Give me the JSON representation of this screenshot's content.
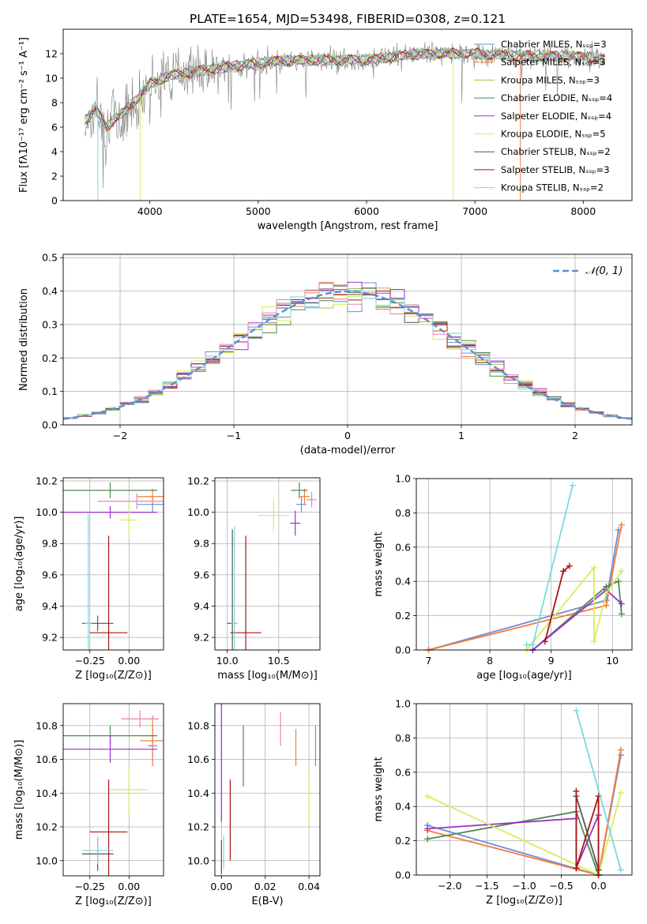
{
  "figure": {
    "title": "PLATE=1654, MJD=53498, FIBERID=0308, z=0.121"
  },
  "colors": {
    "chabrier_miles": "#6a8fd6",
    "salpeter_miles": "#f47c3c",
    "kroupa_miles": "#b9b94a",
    "chabrier_elodie": "#4f8a4f",
    "salpeter_elodie": "#9b30c8",
    "kroupa_elodie": "#d7ee5a",
    "chabrier_stelib": "#555555",
    "salpeter_stelib": "#a81414",
    "kroupa_stelib": "#7dd9dc",
    "data": "#808080",
    "pink": "#e882b8"
  },
  "chart_data": [
    {
      "id": "spectrum",
      "type": "line",
      "title": "PLATE=1654, MJD=53498, FIBERID=0308, z=0.121",
      "xlabel": "wavelength [Angstrom, rest frame]",
      "ylabel": "Flux [fλ10⁻¹⁷ erg cm⁻² s⁻¹ A⁻¹]",
      "xlim": [
        3200,
        8450
      ],
      "ylim": [
        0,
        14
      ],
      "xticks": [
        4000,
        5000,
        6000,
        7000,
        8000
      ],
      "yticks": [
        0,
        2,
        4,
        6,
        8,
        10,
        12
      ],
      "legend_position": "top-right",
      "legend": [
        "Chabrier MILES, N_SSP=3",
        "Salpeter MILES, N_SSP=3",
        "Kroupa MILES, N_SSP=3",
        "Chabrier ELODIE, N_SSP=4",
        "Salpeter ELODIE, N_SSP=4",
        "Kroupa ELODIE, N_SSP=5",
        "Chabrier STELIB, N_SSP=2",
        "Salpeter STELIB, N_SSP=3",
        "Kroupa STELIB, N_SSP=2"
      ],
      "continuum": {
        "x": [
          3400,
          3500,
          3600,
          3700,
          3800,
          3900,
          4000,
          4200,
          4400,
          4600,
          4800,
          5000,
          5200,
          5500,
          6000,
          6500,
          7000,
          7500,
          8000,
          8200
        ],
        "y": [
          6.5,
          7.5,
          6.0,
          6.8,
          7.5,
          8.5,
          9.5,
          10.3,
          10.5,
          10.8,
          11.0,
          11.2,
          11.4,
          11.5,
          11.5,
          12.0,
          12.0,
          11.8,
          11.8,
          11.5
        ]
      }
    },
    {
      "id": "residuals",
      "type": "line",
      "xlabel": "(data-model)/error",
      "ylabel": "Normed distribution",
      "xlim": [
        -2.5,
        2.5
      ],
      "ylim": [
        0,
        0.51
      ],
      "xticks": [
        -2,
        -1,
        0,
        1,
        2
      ],
      "yticks": [
        0.0,
        0.1,
        0.2,
        0.3,
        0.4,
        0.5
      ],
      "legend_position": "top-right",
      "legend": [
        "𝒩(0, 1)"
      ],
      "gaussian": {
        "mean": 0,
        "sigma": 1
      }
    },
    {
      "id": "age_vs_Z",
      "type": "scatter",
      "xlabel": "Z [log₁₀(Z/Z⊙)]",
      "ylabel": "age [log₁₀(age/yr)]",
      "xlim": [
        -0.42,
        0.22
      ],
      "ylim": [
        9.12,
        10.22
      ],
      "xticks": [
        -0.25,
        0.0
      ],
      "yticks": [
        9.2,
        9.4,
        9.6,
        9.8,
        10.0,
        10.2
      ],
      "points": [
        {
          "key": "chabrier_miles",
          "x": 0.15,
          "xerr": 0.1,
          "y": 10.05,
          "yerr": 0.05
        },
        {
          "key": "salpeter_miles",
          "x": 0.15,
          "xerr": 0.1,
          "y": 10.1,
          "yerr": 0.05
        },
        {
          "key": "pink",
          "x": 0.05,
          "xerr": 0.25,
          "y": 10.07,
          "yerr": 0.05
        },
        {
          "key": "chabrier_elodie",
          "x": -0.12,
          "xerr": 0.3,
          "y": 10.14,
          "yerr": 0.05
        },
        {
          "key": "salpeter_elodie",
          "x": -0.12,
          "xerr": 0.3,
          "y": 10.0,
          "yerr": 0.04
        },
        {
          "key": "kroupa_elodie",
          "x": 0.0,
          "xerr": 0.05,
          "y": 9.95,
          "yerr": 0.12
        },
        {
          "key": "chabrier_stelib",
          "x": -0.2,
          "xerr": 0.1,
          "y": 9.29,
          "yerr": 0.05
        },
        {
          "key": "salpeter_stelib",
          "x": -0.13,
          "xerr": 0.12,
          "y": 9.23,
          "yerr": 0.62
        },
        {
          "key": "kroupa_stelib",
          "x": -0.26,
          "xerr": 0.02,
          "y": 9.29,
          "yerr": 0.7
        }
      ]
    },
    {
      "id": "age_vs_mass",
      "type": "scatter",
      "xlabel": "mass [log₁₀(M/M⊙)]",
      "ylabel": "",
      "xlim": [
        9.88,
        10.9
      ],
      "ylim": [
        9.12,
        10.22
      ],
      "xticks": [
        10.0,
        10.5
      ],
      "yticks": [
        9.2,
        9.4,
        9.6,
        9.8,
        10.0,
        10.2
      ],
      "points": [
        {
          "key": "chabrier_miles",
          "x": 10.72,
          "xerr": 0.05,
          "y": 10.05,
          "yerr": 0.05
        },
        {
          "key": "salpeter_miles",
          "x": 10.75,
          "xerr": 0.05,
          "y": 10.1,
          "yerr": 0.05
        },
        {
          "key": "pink",
          "x": 10.82,
          "xerr": 0.05,
          "y": 10.08,
          "yerr": 0.05
        },
        {
          "key": "chabrier_elodie",
          "x": 10.7,
          "xerr": 0.08,
          "y": 10.14,
          "yerr": 0.05
        },
        {
          "key": "salpeter_elodie",
          "x": 10.66,
          "xerr": 0.05,
          "y": 9.93,
          "yerr": 0.08
        },
        {
          "key": "kroupa_elodie",
          "x": 10.45,
          "xerr": 0.15,
          "y": 9.98,
          "yerr": 0.1
        },
        {
          "key": "chabrier_stelib",
          "x": 10.05,
          "xerr": 0.05,
          "y": 9.29,
          "yerr": 0.6
        },
        {
          "key": "salpeter_stelib",
          "x": 10.18,
          "xerr": 0.15,
          "y": 9.23,
          "yerr": 0.62
        },
        {
          "key": "kroupa_stelib",
          "x": 10.07,
          "xerr": 0.03,
          "y": 9.29,
          "yerr": 0.62
        }
      ]
    },
    {
      "id": "weight_vs_age",
      "type": "line",
      "xlabel": "age [log₁₀(age/yr)]",
      "ylabel": "mass weight",
      "xlim": [
        6.8,
        10.32
      ],
      "ylim": [
        0,
        1.0
      ],
      "xticks": [
        7,
        8,
        9,
        10
      ],
      "yticks": [
        0.0,
        0.2,
        0.4,
        0.6,
        0.8,
        1.0
      ],
      "series": [
        {
          "key": "chabrier_miles",
          "x": [
            7.0,
            9.9,
            10.1
          ],
          "y": [
            0.0,
            0.29,
            0.7
          ]
        },
        {
          "key": "salpeter_miles",
          "x": [
            7.0,
            9.9,
            10.15
          ],
          "y": [
            0.0,
            0.26,
            0.73
          ]
        },
        {
          "key": "chabrier_elodie",
          "x": [
            8.7,
            9.9,
            10.1,
            10.15
          ],
          "y": [
            0.0,
            0.37,
            0.4,
            0.21
          ]
        },
        {
          "key": "salpeter_elodie",
          "x": [
            8.7,
            9.9,
            10.15
          ],
          "y": [
            0.0,
            0.35,
            0.27
          ]
        },
        {
          "key": "kroupa_elodie",
          "x": [
            8.6,
            9.7,
            9.7,
            9.9,
            10.15
          ],
          "y": [
            0.0,
            0.48,
            0.05,
            0.33,
            0.46
          ]
        },
        {
          "key": "salpeter_stelib",
          "x": [
            8.9,
            9.2,
            9.3
          ],
          "y": [
            0.05,
            0.46,
            0.49
          ]
        },
        {
          "key": "kroupa_stelib",
          "x": [
            8.6,
            8.7,
            9.35
          ],
          "y": [
            0.03,
            0.03,
            0.96
          ]
        }
      ]
    },
    {
      "id": "mass_vs_Z",
      "type": "scatter",
      "xlabel": "Z [log₁₀(Z/Z⊙)]",
      "ylabel": "mass [log₁₀(M/M⊙)]",
      "xlim": [
        -0.42,
        0.22
      ],
      "ylim": [
        9.91,
        10.93
      ],
      "xticks": [
        -0.25,
        0.0
      ],
      "yticks": [
        10.0,
        10.2,
        10.4,
        10.6,
        10.8
      ],
      "points": [
        {
          "key": "chabrier_miles",
          "x": 0.15,
          "xerr": 0.03,
          "y": 10.68,
          "yerr": 0.12
        },
        {
          "key": "salpeter_miles",
          "x": 0.15,
          "xerr": 0.08,
          "y": 10.71,
          "yerr": 0.15
        },
        {
          "key": "pink",
          "x": 0.07,
          "xerr": 0.12,
          "y": 10.84,
          "yerr": 0.05
        },
        {
          "key": "chabrier_elodie",
          "x": -0.12,
          "xerr": 0.3,
          "y": 10.74,
          "yerr": 0.06
        },
        {
          "key": "salpeter_elodie",
          "x": -0.12,
          "xerr": 0.3,
          "y": 10.66,
          "yerr": 0.08
        },
        {
          "key": "kroupa_elodie",
          "x": 0.0,
          "xerr": 0.12,
          "y": 10.42,
          "yerr": 0.15
        },
        {
          "key": "chabrier_stelib",
          "x": -0.2,
          "xerr": 0.1,
          "y": 10.04,
          "yerr": 0.1
        },
        {
          "key": "salpeter_stelib",
          "x": -0.13,
          "xerr": 0.12,
          "y": 10.17,
          "yerr": 0.31
        },
        {
          "key": "kroupa_stelib",
          "x": -0.2,
          "xerr": 0.1,
          "y": 10.06,
          "yerr": 0.08
        }
      ]
    },
    {
      "id": "mass_vs_ebv",
      "type": "scatter",
      "xlabel": "E(B-V)",
      "ylabel": "",
      "xlim": [
        -0.003,
        0.045
      ],
      "ylim": [
        9.91,
        10.93
      ],
      "xticks": [
        0.0,
        0.02,
        0.04
      ],
      "xticklabels": [
        "0.00",
        "0.02",
        "0.04"
      ],
      "yticks": [
        10.0,
        10.2,
        10.4,
        10.6,
        10.8
      ],
      "points": [
        {
          "key": "chabrier_miles",
          "x": 0.043,
          "y": 10.68,
          "yerr": 0.12
        },
        {
          "key": "salpeter_miles",
          "x": 0.034,
          "y": 10.67,
          "yerr": 0.11
        },
        {
          "key": "pink",
          "x": 0.027,
          "y": 10.78,
          "yerr": 0.1
        },
        {
          "key": "chabrier_elodie",
          "x": 0.01,
          "y": 10.62,
          "yerr": 0.18
        },
        {
          "key": "salpeter_elodie",
          "x": 0.0,
          "y": 10.58,
          "yerr": 0.35
        },
        {
          "key": "kroupa_elodie",
          "x": 0.04,
          "y": 10.37,
          "yerr": 0.16
        },
        {
          "key": "chabrier_stelib",
          "x": 0.0,
          "y": 10.02,
          "yerr": 0.1
        },
        {
          "key": "salpeter_stelib",
          "x": 0.004,
          "y": 10.24,
          "yerr": 0.24
        },
        {
          "key": "kroupa_stelib",
          "x": 0.001,
          "y": 10.05,
          "yerr": 0.1
        }
      ]
    },
    {
      "id": "weight_vs_Z",
      "type": "line",
      "xlabel": "Z [log₁₀(Z/Z⊙)]",
      "ylabel": "mass weight",
      "xlim": [
        -2.45,
        0.45
      ],
      "ylim": [
        0,
        1.0
      ],
      "xticks": [
        -2.0,
        -1.5,
        -1.0,
        -0.5,
        0.0
      ],
      "xticklabels": [
        "−2.0",
        "−1.5",
        "−1.0",
        "−0.5",
        "0.0"
      ],
      "yticks": [
        0.0,
        0.2,
        0.4,
        0.6,
        0.8,
        1.0
      ],
      "series": [
        {
          "key": "chabrier_miles",
          "x": [
            -2.3,
            0.0,
            0.3
          ],
          "y": [
            0.29,
            0.0,
            0.7
          ]
        },
        {
          "key": "salpeter_miles",
          "x": [
            -2.3,
            0.0,
            0.3
          ],
          "y": [
            0.26,
            0.0,
            0.73
          ]
        },
        {
          "key": "chabrier_elodie",
          "x": [
            -2.3,
            -0.3,
            0.0
          ],
          "y": [
            0.21,
            0.37,
            0.0
          ]
        },
        {
          "key": "salpeter_elodie",
          "x": [
            -2.3,
            -0.3,
            -0.3,
            0.0,
            0.0
          ],
          "y": [
            0.27,
            0.33,
            0.04,
            0.35,
            0.0
          ]
        },
        {
          "key": "kroupa_elodie",
          "x": [
            -2.3,
            0.0,
            0.3
          ],
          "y": [
            0.46,
            0.0,
            0.48
          ]
        },
        {
          "key": "chabrier_stelib",
          "x": [
            -0.3,
            0.0
          ],
          "y": [
            0.46,
            0.03
          ]
        },
        {
          "key": "salpeter_stelib",
          "x": [
            -0.3,
            -0.3,
            0.0,
            0.0
          ],
          "y": [
            0.49,
            0.04,
            0.46,
            0.0
          ]
        },
        {
          "key": "kroupa_stelib",
          "x": [
            -0.3,
            0.3
          ],
          "y": [
            0.96,
            0.03
          ]
        }
      ]
    }
  ]
}
